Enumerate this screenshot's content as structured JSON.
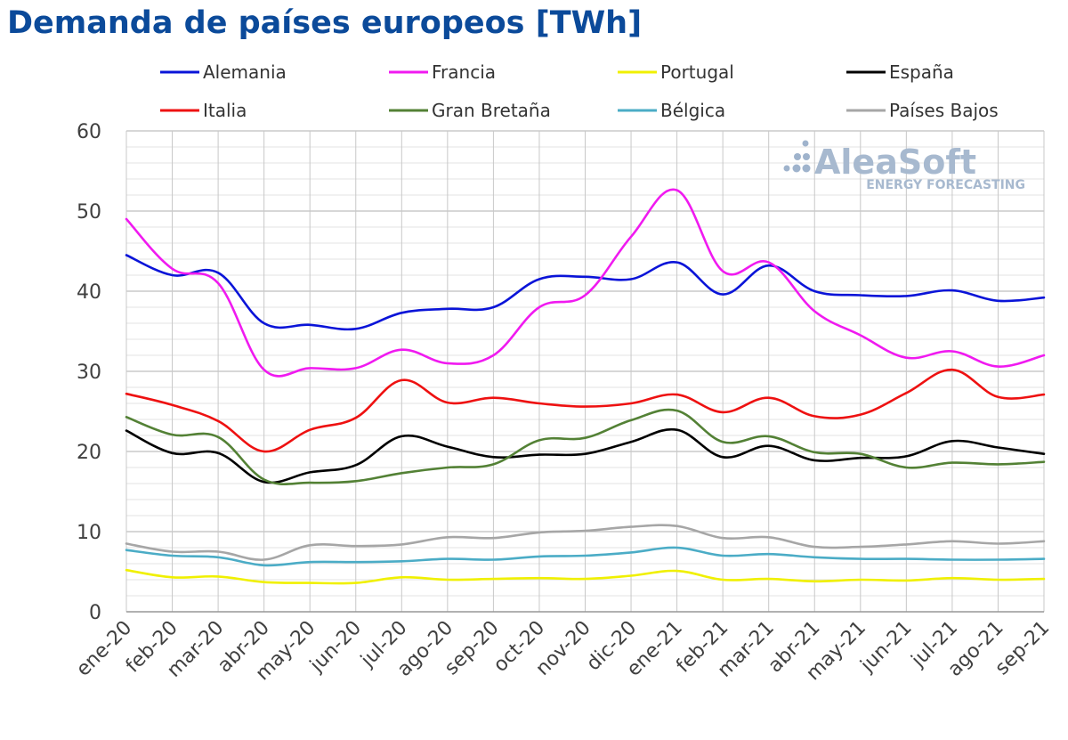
{
  "chart_data": {
    "type": "line",
    "title": "Demanda de países europeos [TWh]",
    "xlabel": "",
    "ylabel": "",
    "ylim": [
      0,
      60
    ],
    "yticks": [
      0,
      10,
      20,
      30,
      40,
      50,
      60
    ],
    "grid": true,
    "legend_position": "top",
    "watermark": {
      "name": "AleaSoft",
      "tagline": "ENERGY FORECASTING"
    },
    "categories": [
      "ene-20",
      "feb-20",
      "mar-20",
      "abr-20",
      "may-20",
      "jun-20",
      "jul-20",
      "ago-20",
      "sep-20",
      "oct-20",
      "nov-20",
      "dic-20",
      "ene-21",
      "feb-21",
      "mar-21",
      "abr-21",
      "may-21",
      "jun-21",
      "jul-21",
      "ago-21",
      "sep-21"
    ],
    "series": [
      {
        "name": "Alemania",
        "color": "#0a14d8",
        "values": [
          44.5,
          42.0,
          42.3,
          36.0,
          35.8,
          35.3,
          37.3,
          37.8,
          38.0,
          41.5,
          41.8,
          41.5,
          43.6,
          39.6,
          43.2,
          40.0,
          39.5,
          39.4,
          40.1,
          38.8,
          39.2
        ]
      },
      {
        "name": "Francia",
        "color": "#f01af0",
        "values": [
          49.0,
          42.8,
          41.0,
          30.2,
          30.4,
          30.4,
          32.7,
          31.0,
          32.0,
          38.0,
          39.5,
          46.8,
          52.6,
          42.5,
          43.6,
          37.5,
          34.5,
          31.7,
          32.5,
          30.6,
          32.0
        ]
      },
      {
        "name": "Portugal",
        "color": "#f0f000",
        "values": [
          5.2,
          4.3,
          4.4,
          3.7,
          3.6,
          3.6,
          4.3,
          4.0,
          4.1,
          4.2,
          4.1,
          4.5,
          5.1,
          4.0,
          4.1,
          3.8,
          4.0,
          3.9,
          4.2,
          4.0,
          4.1
        ]
      },
      {
        "name": "España",
        "color": "#000000",
        "values": [
          22.6,
          19.8,
          19.8,
          16.2,
          17.4,
          18.3,
          21.9,
          20.6,
          19.3,
          19.6,
          19.7,
          21.2,
          22.7,
          19.3,
          20.7,
          18.9,
          19.2,
          19.4,
          21.3,
          20.5,
          19.7
        ]
      },
      {
        "name": "Italia",
        "color": "#ee1111",
        "values": [
          27.2,
          25.8,
          23.8,
          20.0,
          22.7,
          24.2,
          28.9,
          26.1,
          26.7,
          26.0,
          25.6,
          26.0,
          27.1,
          24.9,
          26.7,
          24.4,
          24.6,
          27.3,
          30.2,
          26.8,
          27.1
        ]
      },
      {
        "name": "Gran Bretaña",
        "color": "#538135",
        "values": [
          24.3,
          22.1,
          21.8,
          16.5,
          16.1,
          16.3,
          17.3,
          18.0,
          18.4,
          21.4,
          21.7,
          23.9,
          25.1,
          21.2,
          21.9,
          19.9,
          19.7,
          18.0,
          18.6,
          18.4,
          18.7
        ]
      },
      {
        "name": "Bélgica",
        "color": "#4bacc6",
        "values": [
          7.7,
          7.0,
          6.8,
          5.8,
          6.2,
          6.2,
          6.3,
          6.6,
          6.5,
          6.9,
          7.0,
          7.4,
          8.0,
          7.0,
          7.2,
          6.8,
          6.6,
          6.6,
          6.5,
          6.5,
          6.6
        ]
      },
      {
        "name": "Países Bajos",
        "color": "#a6a6a6",
        "values": [
          8.5,
          7.5,
          7.5,
          6.5,
          8.3,
          8.2,
          8.4,
          9.3,
          9.2,
          9.9,
          10.1,
          10.6,
          10.7,
          9.2,
          9.3,
          8.1,
          8.1,
          8.4,
          8.8,
          8.5,
          8.8
        ]
      }
    ]
  }
}
